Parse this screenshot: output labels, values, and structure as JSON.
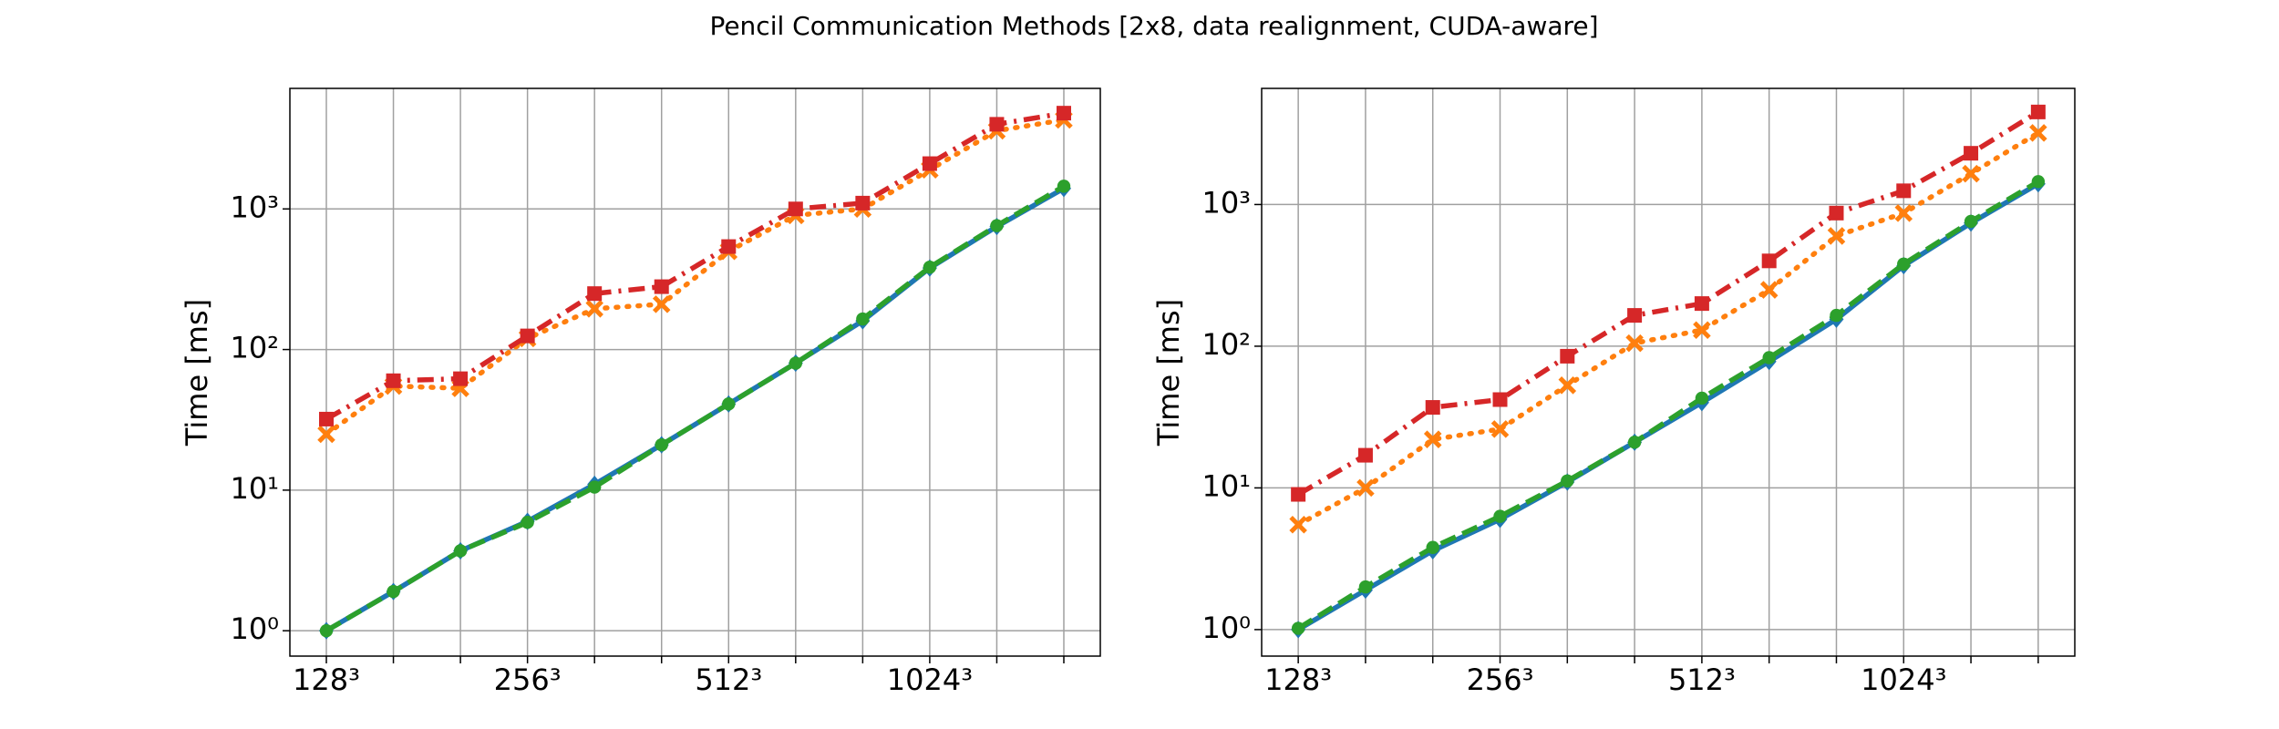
{
  "title": "Pencil Communication Methods [2x8, data realignment, CUDA-aware]",
  "chart_data": [
    {
      "type": "line",
      "ylabel": "Time [ms]",
      "yscale": "log",
      "grid": true,
      "categories": [
        "128³",
        null,
        null,
        "256³",
        null,
        null,
        "512³",
        null,
        null,
        "1024³",
        null,
        null
      ],
      "ylim": [
        0.66,
        7200
      ],
      "yticks": [
        {
          "value": 1,
          "label": "10⁰"
        },
        {
          "value": 10,
          "label": "10¹"
        },
        {
          "value": 100,
          "label": "10²"
        },
        {
          "value": 1000,
          "label": "10³"
        }
      ],
      "series": [
        {
          "color": "#1f77b4",
          "linestyle": "solid",
          "marker": "diamond",
          "values": [
            1,
            1.9,
            3.7,
            6,
            11,
            21,
            41,
            80,
            160,
            380,
            750,
            1400
          ]
        },
        {
          "color": "#ff7f0e",
          "linestyle": "dotted",
          "marker": "x",
          "values": [
            25,
            55,
            53,
            120,
            195,
            210,
            500,
            900,
            1000,
            1900,
            3600,
            4300
          ]
        },
        {
          "color": "#2ca02c",
          "linestyle": "dashed",
          "marker": "circle",
          "values": [
            1,
            1.9,
            3.7,
            5.9,
            10.5,
            21,
            41,
            80,
            165,
            385,
            760,
            1450
          ]
        },
        {
          "color": "#d62728",
          "linestyle": "dashdot",
          "marker": "square",
          "values": [
            32,
            60,
            62,
            125,
            250,
            280,
            540,
            1000,
            1100,
            2100,
            4000,
            4800
          ]
        }
      ]
    },
    {
      "type": "line",
      "ylabel": "Time [ms]",
      "yscale": "log",
      "grid": true,
      "categories": [
        "128³",
        null,
        null,
        "256³",
        null,
        null,
        "512³",
        null,
        null,
        "1024³",
        null,
        null
      ],
      "ylim": [
        0.65,
        6600
      ],
      "yticks": [
        {
          "value": 1,
          "label": "10⁰"
        },
        {
          "value": 10,
          "label": "10¹"
        },
        {
          "value": 100,
          "label": "10²"
        },
        {
          "value": 1000,
          "label": "10³"
        }
      ],
      "series": [
        {
          "color": "#1f77b4",
          "linestyle": "solid",
          "marker": "diamond",
          "values": [
            1,
            1.9,
            3.6,
            6,
            11,
            21,
            40,
            78,
            155,
            370,
            740,
            1400
          ]
        },
        {
          "color": "#ff7f0e",
          "linestyle": "dotted",
          "marker": "x",
          "values": [
            5.5,
            10,
            22,
            26,
            53,
            105,
            130,
            250,
            600,
            870,
            1650,
            3200
          ]
        },
        {
          "color": "#2ca02c",
          "linestyle": "dashed",
          "marker": "circle",
          "values": [
            1.02,
            2.0,
            3.8,
            6.3,
            11.2,
            21,
            43,
            83,
            165,
            380,
            760,
            1450
          ]
        },
        {
          "color": "#d62728",
          "linestyle": "dashdot",
          "marker": "square",
          "values": [
            9,
            17,
            37,
            42,
            85,
            165,
            200,
            400,
            870,
            1250,
            2300,
            4500
          ]
        }
      ]
    }
  ]
}
